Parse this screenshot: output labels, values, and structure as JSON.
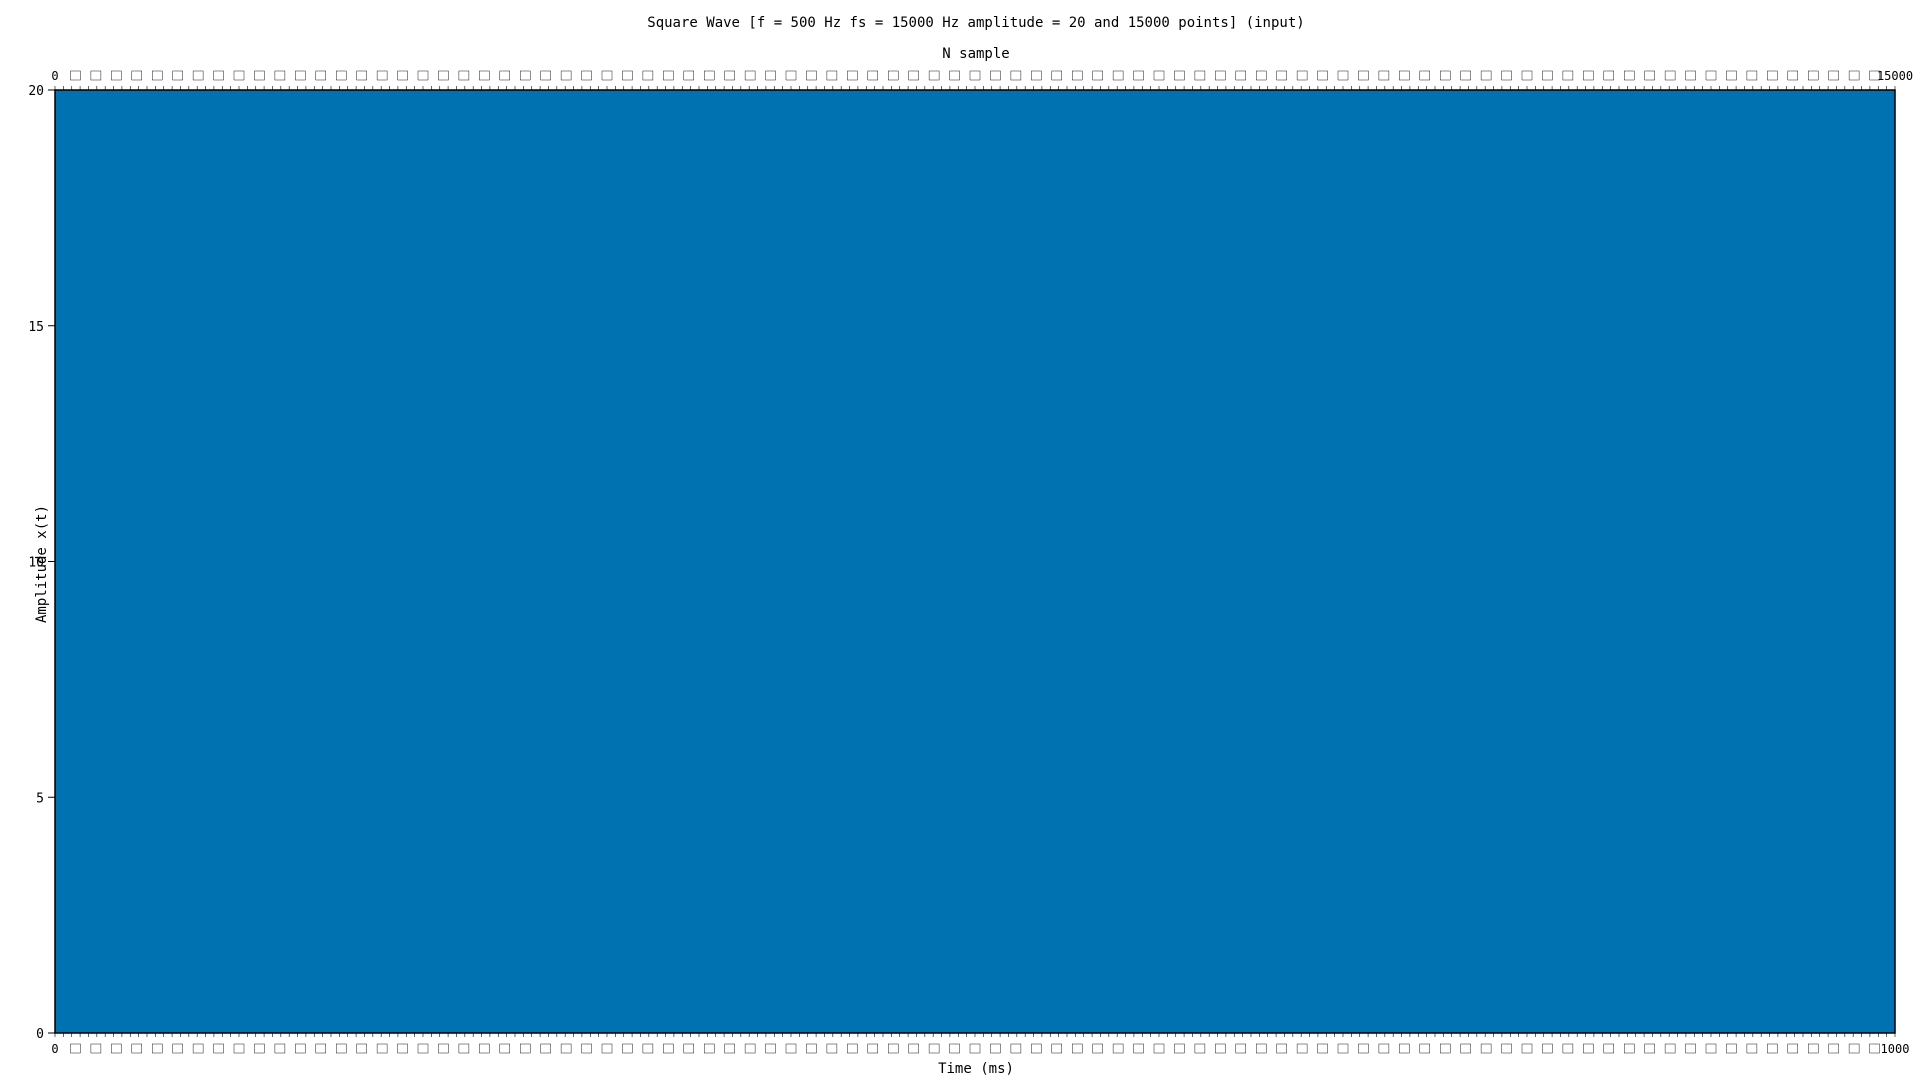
{
  "chart_data": {
    "type": "area",
    "title": "Square Wave [f = 500 Hz fs = 15000 Hz amplitude = 20 and 15000 points] (input)",
    "xlabel": "Time (ms)",
    "x2label": "N sample",
    "ylabel": "Amplitude x(t)",
    "ylim": [
      0,
      20
    ],
    "yticks": [
      0,
      5,
      10,
      15,
      20
    ],
    "xlim": [
      0,
      1000
    ],
    "x2lim": [
      0,
      15000
    ],
    "x_first_tick_label": "0",
    "x_last_tick_label": "1000",
    "x2_first_tick_label": "0",
    "x2_last_tick_label": "15000",
    "dense_tick_labels": true,
    "series": [
      {
        "color": "#0072b2",
        "x": [
          0,
          1000
        ],
        "y": [
          20,
          20
        ]
      }
    ],
    "grid": false
  }
}
